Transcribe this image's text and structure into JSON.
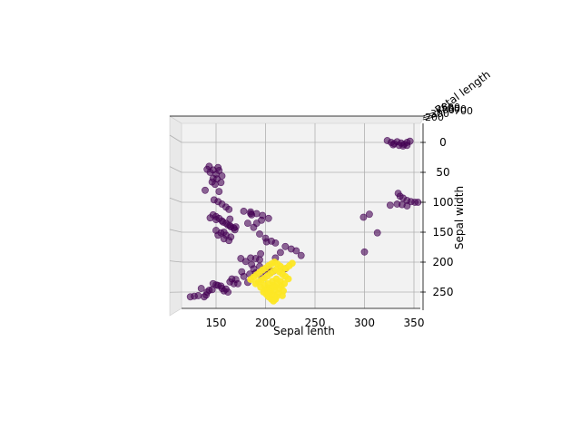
{
  "chart_data": {
    "type": "scatter",
    "projection": "3d",
    "title": "",
    "xlabel": "Sepal lenth",
    "ylabel": "Sepal width",
    "zlabel": "Petal length",
    "xlim": [
      115,
      360
    ],
    "ylim": [
      0,
      270
    ],
    "x_ticks": [
      150,
      200,
      250,
      300,
      350
    ],
    "y_ticks": [
      0,
      50,
      100,
      150,
      200,
      250
    ],
    "grid": true,
    "legend": false,
    "colors": {
      "class_0": "#440154",
      "class_1": "#fde725",
      "pane": "#f2f2f2",
      "grid": "#b0b0b0"
    },
    "series": [
      {
        "color_class": "class_0",
        "x": [
          124,
          128,
          132,
          138,
          143,
          150,
          156,
          162,
          168,
          140,
          146,
          152,
          158,
          164,
          170,
          135,
          141,
          147,
          155,
          160,
          166,
          172,
          178,
          184,
          190,
          196,
          176,
          182,
          188,
          194,
          185,
          190,
          195,
          200,
          205,
          210,
          215,
          220,
          186,
          191,
          196,
          201,
          206,
          141,
          144,
          147,
          150,
          153,
          156,
          143,
          147,
          151,
          155,
          149,
          152,
          139,
          146,
          153,
          148,
          152,
          156,
          160,
          163,
          144,
          150,
          157,
          162,
          165,
          169,
          152,
          158,
          164,
          170,
          178,
          185,
          182,
          188,
          194,
          200,
          210,
          220,
          226,
          231,
          236,
          175,
          180,
          186,
          194,
          203,
          208,
          147,
          150,
          153,
          156,
          160,
          164,
          168,
          150,
          155,
          160,
          165,
          158,
          163,
          185,
          191,
          197,
          203,
          299,
          305,
          300,
          313,
          323,
          327,
          330,
          333,
          337,
          340,
          343,
          346,
          335,
          339,
          343,
          329,
          334,
          336,
          339,
          343,
          347,
          351,
          354,
          326,
          333,
          338,
          343
        ],
        "y": [
          258,
          257,
          256,
          258,
          247,
          238,
          244,
          250,
          236,
          255,
          246,
          239,
          248,
          233,
          229,
          244,
          250,
          236,
          240,
          245,
          228,
          236,
          224,
          220,
          218,
          224,
          216,
          234,
          211,
          196,
          193,
          194,
          186,
          214,
          217,
          193,
          184,
          211,
          121,
          135,
          130,
          166,
          165,
          45,
          50,
          46,
          53,
          47,
          56,
          40,
          60,
          61,
          67,
          70,
          42,
          80,
          66,
          82,
          96,
          99,
          103,
          108,
          112,
          126,
          129,
          133,
          138,
          141,
          146,
          155,
          150,
          128,
          141,
          115,
          119,
          135,
          142,
          153,
          160,
          168,
          174,
          178,
          181,
          189,
          194,
          199,
          204,
          207,
          212,
          215,
          121,
          124,
          127,
          131,
          135,
          139,
          143,
          147,
          151,
          155,
          158,
          161,
          164,
          116,
          119,
          122,
          127,
          125,
          120,
          183,
          151,
          -3,
          0,
          2,
          -1,
          1,
          3,
          0,
          -2,
          5,
          6,
          5,
          4,
          85,
          90,
          93,
          97,
          99,
          100,
          100,
          105,
          103,
          104,
          106
        ]
      },
      {
        "color_class": "class_1",
        "x": [
          185,
          188,
          191,
          194,
          197,
          200,
          203,
          206,
          209,
          212,
          215,
          218,
          221,
          224,
          227,
          190,
          193,
          196,
          199,
          202,
          205,
          208,
          211,
          214,
          217,
          220,
          223,
          195,
          199,
          203,
          207,
          211,
          215,
          219,
          200,
          204,
          208,
          212,
          216,
          198,
          202,
          206,
          210,
          214,
          218,
          201,
          205,
          209,
          213,
          217,
          203,
          207,
          211,
          206,
          210,
          208
        ],
        "y": [
          229,
          225,
          221,
          217,
          213,
          210,
          206,
          203,
          200,
          203,
          207,
          211,
          210,
          206,
          202,
          236,
          233,
          230,
          227,
          223,
          219,
          215,
          212,
          216,
          220,
          224,
          228,
          242,
          239,
          236,
          232,
          228,
          232,
          236,
          246,
          243,
          239,
          235,
          240,
          250,
          247,
          244,
          241,
          244,
          248,
          254,
          251,
          248,
          252,
          256,
          258,
          255,
          258,
          262,
          262,
          265
        ]
      }
    ]
  }
}
